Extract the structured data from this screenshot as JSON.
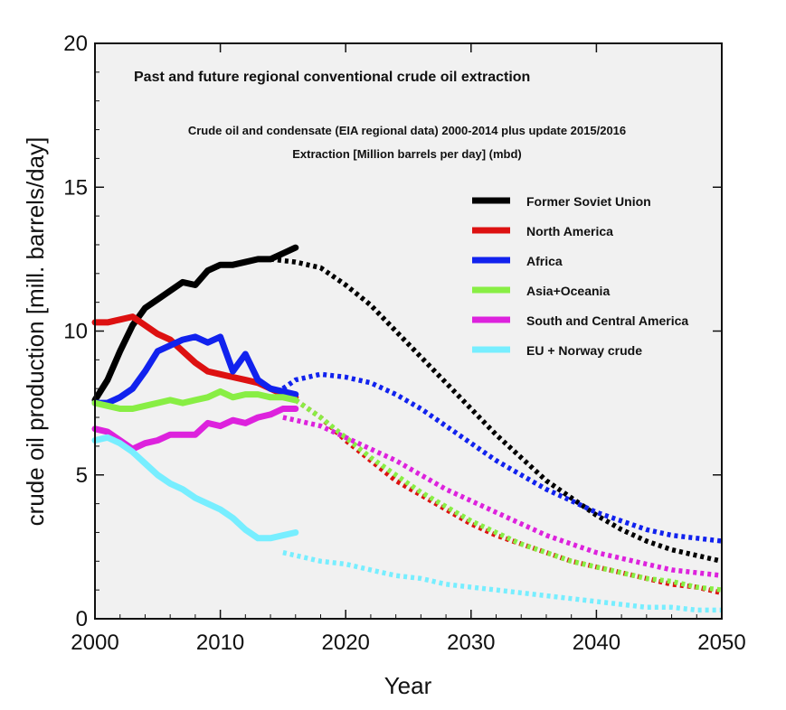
{
  "chart_data": {
    "type": "line",
    "title": "Past and future regional conventional crude oil extraction",
    "subtitle_1": "Crude oil and condensate (EIA regional data) 2000-2014 plus update 2015/2016",
    "subtitle_2": "Extraction [Million barrels per day] (mbd)",
    "xlabel": "Year",
    "ylabel": "crude oil production [mill. barrels/day]",
    "xlim": [
      2000,
      2050
    ],
    "ylim": [
      0,
      20
    ],
    "xticks": [
      2000,
      2010,
      2020,
      2030,
      2040,
      2050
    ],
    "yticks": [
      0,
      5,
      10,
      15,
      20
    ],
    "legend_position": "right",
    "series": [
      {
        "name": "Former Soviet Union",
        "color": "#000000",
        "historical": [
          [
            2000,
            7.6
          ],
          [
            2001,
            8.3
          ],
          [
            2002,
            9.3
          ],
          [
            2003,
            10.2
          ],
          [
            2004,
            10.8
          ],
          [
            2005,
            11.1
          ],
          [
            2006,
            11.4
          ],
          [
            2007,
            11.7
          ],
          [
            2008,
            11.6
          ],
          [
            2009,
            12.1
          ],
          [
            2010,
            12.3
          ],
          [
            2011,
            12.3
          ],
          [
            2012,
            12.4
          ],
          [
            2013,
            12.5
          ],
          [
            2014,
            12.5
          ],
          [
            2015,
            12.7
          ],
          [
            2016,
            12.9
          ]
        ],
        "forecast": [
          [
            2014,
            12.5
          ],
          [
            2016,
            12.4
          ],
          [
            2018,
            12.2
          ],
          [
            2020,
            11.6
          ],
          [
            2022,
            10.9
          ],
          [
            2024,
            10.0
          ],
          [
            2026,
            9.1
          ],
          [
            2028,
            8.2
          ],
          [
            2030,
            7.3
          ],
          [
            2032,
            6.4
          ],
          [
            2034,
            5.6
          ],
          [
            2036,
            4.8
          ],
          [
            2038,
            4.2
          ],
          [
            2040,
            3.6
          ],
          [
            2042,
            3.1
          ],
          [
            2044,
            2.7
          ],
          [
            2046,
            2.4
          ],
          [
            2048,
            2.2
          ],
          [
            2050,
            2.0
          ]
        ]
      },
      {
        "name": "North America",
        "color": "#dd1111",
        "historical": [
          [
            2000,
            10.3
          ],
          [
            2001,
            10.3
          ],
          [
            2002,
            10.4
          ],
          [
            2003,
            10.5
          ],
          [
            2004,
            10.2
          ],
          [
            2005,
            9.9
          ],
          [
            2006,
            9.7
          ],
          [
            2007,
            9.3
          ],
          [
            2008,
            8.9
          ],
          [
            2009,
            8.6
          ],
          [
            2010,
            8.5
          ],
          [
            2011,
            8.4
          ],
          [
            2012,
            8.3
          ],
          [
            2013,
            8.2
          ],
          [
            2014,
            8.0
          ],
          [
            2015,
            7.8
          ],
          [
            2016,
            7.7
          ]
        ],
        "forecast": [
          [
            2016,
            7.6
          ],
          [
            2018,
            7.0
          ],
          [
            2020,
            6.2
          ],
          [
            2022,
            5.5
          ],
          [
            2024,
            4.8
          ],
          [
            2026,
            4.3
          ],
          [
            2028,
            3.8
          ],
          [
            2030,
            3.3
          ],
          [
            2032,
            2.9
          ],
          [
            2034,
            2.6
          ],
          [
            2036,
            2.3
          ],
          [
            2038,
            2.0
          ],
          [
            2040,
            1.8
          ],
          [
            2042,
            1.6
          ],
          [
            2044,
            1.4
          ],
          [
            2046,
            1.2
          ],
          [
            2048,
            1.1
          ],
          [
            2050,
            0.9
          ]
        ]
      },
      {
        "name": "Africa",
        "color": "#1122ee",
        "historical": [
          [
            2000,
            7.5
          ],
          [
            2001,
            7.5
          ],
          [
            2002,
            7.7
          ],
          [
            2003,
            8.0
          ],
          [
            2004,
            8.6
          ],
          [
            2005,
            9.3
          ],
          [
            2006,
            9.5
          ],
          [
            2007,
            9.7
          ],
          [
            2008,
            9.8
          ],
          [
            2009,
            9.6
          ],
          [
            2010,
            9.8
          ],
          [
            2011,
            8.6
          ],
          [
            2012,
            9.2
          ],
          [
            2013,
            8.3
          ],
          [
            2014,
            8.0
          ],
          [
            2015,
            7.9
          ],
          [
            2016,
            7.8
          ]
        ],
        "forecast": [
          [
            2015,
            8.0
          ],
          [
            2016,
            8.3
          ],
          [
            2018,
            8.5
          ],
          [
            2020,
            8.4
          ],
          [
            2022,
            8.2
          ],
          [
            2024,
            7.8
          ],
          [
            2026,
            7.3
          ],
          [
            2028,
            6.7
          ],
          [
            2030,
            6.1
          ],
          [
            2032,
            5.5
          ],
          [
            2034,
            5.0
          ],
          [
            2036,
            4.5
          ],
          [
            2038,
            4.1
          ],
          [
            2040,
            3.7
          ],
          [
            2042,
            3.4
          ],
          [
            2044,
            3.1
          ],
          [
            2046,
            2.9
          ],
          [
            2048,
            2.8
          ],
          [
            2050,
            2.7
          ]
        ]
      },
      {
        "name": "Asia+Oceania",
        "color": "#88ee44",
        "historical": [
          [
            2000,
            7.5
          ],
          [
            2001,
            7.4
          ],
          [
            2002,
            7.3
          ],
          [
            2003,
            7.3
          ],
          [
            2004,
            7.4
          ],
          [
            2005,
            7.5
          ],
          [
            2006,
            7.6
          ],
          [
            2007,
            7.5
          ],
          [
            2008,
            7.6
          ],
          [
            2009,
            7.7
          ],
          [
            2010,
            7.9
          ],
          [
            2011,
            7.7
          ],
          [
            2012,
            7.8
          ],
          [
            2013,
            7.8
          ],
          [
            2014,
            7.7
          ],
          [
            2015,
            7.7
          ],
          [
            2016,
            7.6
          ]
        ],
        "forecast": [
          [
            2016,
            7.6
          ],
          [
            2018,
            7.0
          ],
          [
            2020,
            6.3
          ],
          [
            2022,
            5.6
          ],
          [
            2024,
            5.0
          ],
          [
            2026,
            4.4
          ],
          [
            2028,
            3.9
          ],
          [
            2030,
            3.4
          ],
          [
            2032,
            3.0
          ],
          [
            2034,
            2.6
          ],
          [
            2036,
            2.3
          ],
          [
            2038,
            2.0
          ],
          [
            2040,
            1.8
          ],
          [
            2042,
            1.6
          ],
          [
            2044,
            1.4
          ],
          [
            2046,
            1.3
          ],
          [
            2048,
            1.1
          ],
          [
            2050,
            1.0
          ]
        ]
      },
      {
        "name": "South and Central America",
        "color": "#dd22dd",
        "historical": [
          [
            2000,
            6.6
          ],
          [
            2001,
            6.5
          ],
          [
            2002,
            6.2
          ],
          [
            2003,
            5.9
          ],
          [
            2004,
            6.1
          ],
          [
            2005,
            6.2
          ],
          [
            2006,
            6.4
          ],
          [
            2007,
            6.4
          ],
          [
            2008,
            6.4
          ],
          [
            2009,
            6.8
          ],
          [
            2010,
            6.7
          ],
          [
            2011,
            6.9
          ],
          [
            2012,
            6.8
          ],
          [
            2013,
            7.0
          ],
          [
            2014,
            7.1
          ],
          [
            2015,
            7.3
          ],
          [
            2016,
            7.3
          ]
        ],
        "forecast": [
          [
            2015,
            7.0
          ],
          [
            2016,
            6.9
          ],
          [
            2018,
            6.7
          ],
          [
            2020,
            6.3
          ],
          [
            2022,
            5.9
          ],
          [
            2024,
            5.5
          ],
          [
            2026,
            5.0
          ],
          [
            2028,
            4.5
          ],
          [
            2030,
            4.1
          ],
          [
            2032,
            3.7
          ],
          [
            2034,
            3.3
          ],
          [
            2036,
            2.9
          ],
          [
            2038,
            2.6
          ],
          [
            2040,
            2.3
          ],
          [
            2042,
            2.1
          ],
          [
            2044,
            1.9
          ],
          [
            2046,
            1.7
          ],
          [
            2048,
            1.6
          ],
          [
            2050,
            1.5
          ]
        ]
      },
      {
        "name": "EU + Norway crude",
        "color": "#77eeff",
        "historical": [
          [
            2000,
            6.2
          ],
          [
            2001,
            6.3
          ],
          [
            2002,
            6.1
          ],
          [
            2003,
            5.8
          ],
          [
            2004,
            5.4
          ],
          [
            2005,
            5.0
          ],
          [
            2006,
            4.7
          ],
          [
            2007,
            4.5
          ],
          [
            2008,
            4.2
          ],
          [
            2009,
            4.0
          ],
          [
            2010,
            3.8
          ],
          [
            2011,
            3.5
          ],
          [
            2012,
            3.1
          ],
          [
            2013,
            2.8
          ],
          [
            2014,
            2.8
          ],
          [
            2015,
            2.9
          ],
          [
            2016,
            3.0
          ]
        ],
        "forecast": [
          [
            2015,
            2.3
          ],
          [
            2016,
            2.2
          ],
          [
            2018,
            2.0
          ],
          [
            2020,
            1.9
          ],
          [
            2022,
            1.7
          ],
          [
            2024,
            1.5
          ],
          [
            2026,
            1.4
          ],
          [
            2028,
            1.2
          ],
          [
            2030,
            1.1
          ],
          [
            2032,
            1.0
          ],
          [
            2034,
            0.9
          ],
          [
            2036,
            0.8
          ],
          [
            2038,
            0.7
          ],
          [
            2040,
            0.6
          ],
          [
            2042,
            0.5
          ],
          [
            2044,
            0.4
          ],
          [
            2046,
            0.4
          ],
          [
            2048,
            0.3
          ],
          [
            2050,
            0.3
          ]
        ]
      }
    ]
  }
}
